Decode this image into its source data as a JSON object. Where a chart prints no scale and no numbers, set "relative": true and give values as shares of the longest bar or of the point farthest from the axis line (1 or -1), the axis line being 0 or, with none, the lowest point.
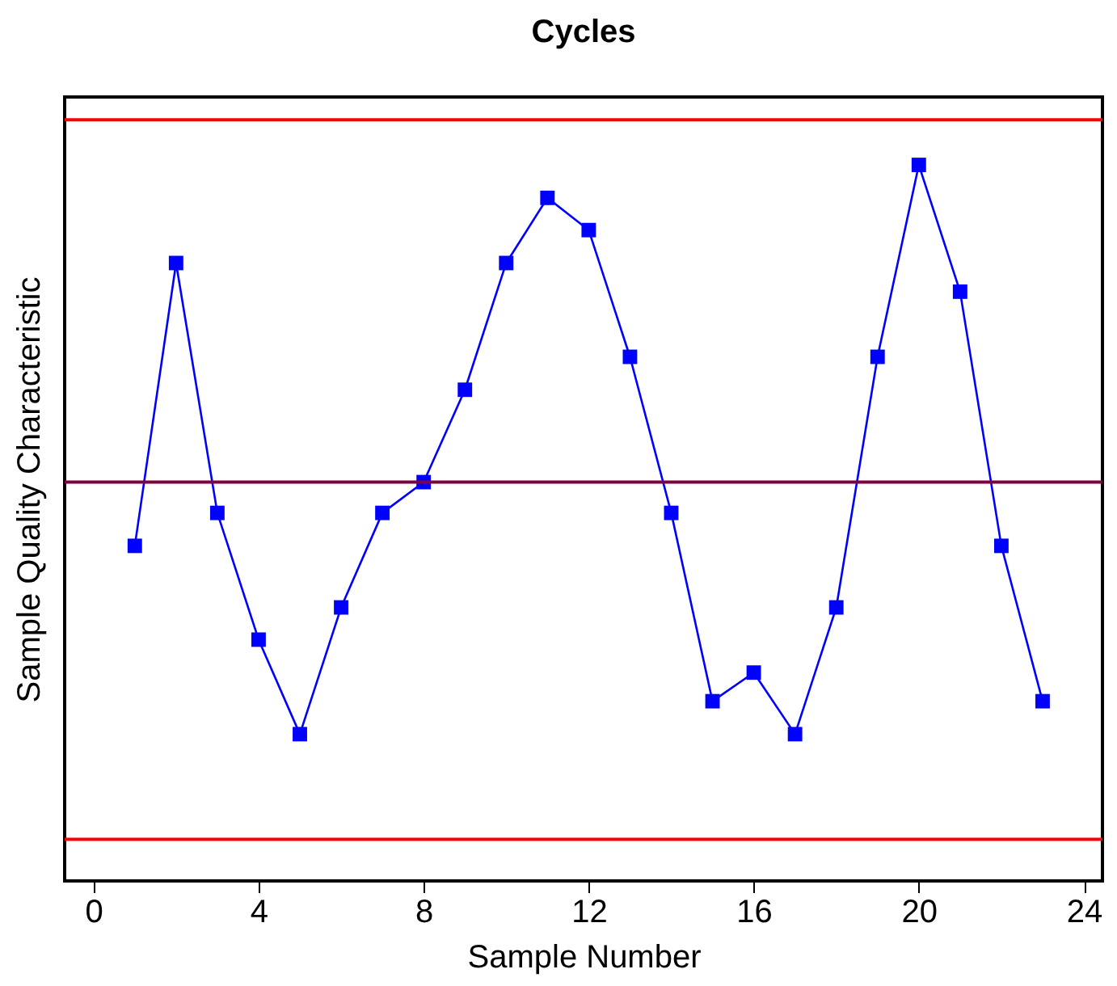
{
  "chart_data": {
    "type": "line",
    "title": "Cycles",
    "xlabel": "Sample Number",
    "ylabel": "Sample Quality Characteristic",
    "relative": true,
    "tick_labels": "x",
    "x": [
      1,
      2,
      3,
      4,
      5,
      6,
      7,
      8,
      9,
      10,
      11,
      12,
      13,
      14,
      15,
      16,
      17,
      18,
      19,
      20,
      21,
      22,
      23
    ],
    "series": [
      {
        "color": "#0000ff",
        "values": [
          0.468,
          0.863,
          0.514,
          0.337,
          0.205,
          0.382,
          0.514,
          0.557,
          0.686,
          0.863,
          0.954,
          0.909,
          0.732,
          0.514,
          0.251,
          0.291,
          0.205,
          0.382,
          0.732,
          1,
          0.823,
          0.468,
          0.251
        ]
      }
    ],
    "xlim": [
      -0.7,
      24.45
    ],
    "xticks": [
      0,
      4,
      8,
      12,
      16,
      20,
      24
    ],
    "ref_lines": [
      {
        "axis": "y",
        "value": 1.063,
        "color": "#ff0000"
      },
      {
        "axis": "y",
        "value": 0.557,
        "color": "#800040"
      },
      {
        "axis": "y",
        "value": 0.058,
        "color": "#ff0000"
      }
    ],
    "marker": "square",
    "line_style": "solid",
    "grid": false
  }
}
